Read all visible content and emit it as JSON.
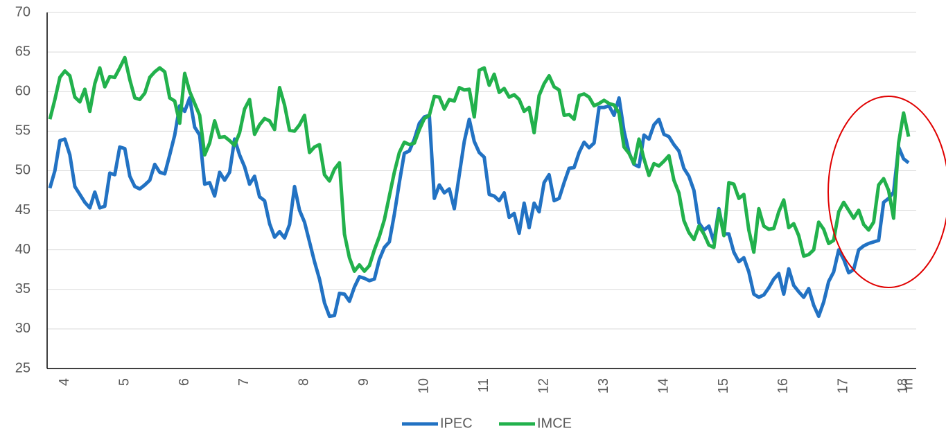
{
  "chart_data": {
    "type": "line",
    "categories": [
      null,
      null,
      null,
      "4",
      null,
      null,
      null,
      null,
      null,
      null,
      null,
      null,
      null,
      null,
      null,
      "5",
      null,
      null,
      null,
      null,
      null,
      null,
      null,
      null,
      null,
      null,
      null,
      "6",
      null,
      null,
      null,
      null,
      null,
      null,
      null,
      null,
      null,
      null,
      null,
      "7",
      null,
      null,
      null,
      null,
      null,
      null,
      null,
      null,
      null,
      null,
      null,
      "8",
      null,
      null,
      null,
      null,
      null,
      null,
      null,
      null,
      null,
      null,
      null,
      "9",
      null,
      null,
      null,
      null,
      null,
      null,
      null,
      null,
      null,
      null,
      null,
      "10",
      null,
      null,
      null,
      null,
      null,
      null,
      null,
      null,
      null,
      null,
      null,
      "11",
      null,
      null,
      null,
      null,
      null,
      null,
      null,
      null,
      null,
      null,
      null,
      "12",
      null,
      null,
      null,
      null,
      null,
      null,
      null,
      null,
      null,
      null,
      null,
      "13",
      null,
      null,
      null,
      null,
      null,
      null,
      null,
      null,
      null,
      null,
      null,
      "14",
      null,
      null,
      null,
      null,
      null,
      null,
      null,
      null,
      null,
      null,
      null,
      "15",
      null,
      null,
      null,
      null,
      null,
      null,
      null,
      null,
      null,
      null,
      null,
      "16",
      null,
      null,
      null,
      null,
      null,
      null,
      null,
      null,
      null,
      null,
      null,
      "17",
      null,
      null,
      null,
      null,
      null,
      null,
      null,
      null,
      null,
      null,
      null,
      "18",
      "m"
    ],
    "series": [
      {
        "name": "IPEC",
        "color": "#2272c3",
        "values": [
          47.8,
          50,
          53.8,
          54,
          52,
          48,
          47,
          46,
          45.3,
          47.3,
          45.3,
          45.5,
          49.7,
          49.5,
          53,
          52.8,
          49.3,
          48,
          47.7,
          48.2,
          48.8,
          50.8,
          49.8,
          49.6,
          52,
          54.5,
          58.2,
          57.5,
          59.2,
          55.5,
          54.5,
          48.3,
          48.5,
          46.8,
          49.8,
          48.8,
          49.8,
          54,
          52,
          50.5,
          48.3,
          49.3,
          46.7,
          46.2,
          43.3,
          41.6,
          42.3,
          41.5,
          43.2,
          48,
          45,
          43.5,
          41,
          38.5,
          36.3,
          33.3,
          31.6,
          31.7,
          34.5,
          34.4,
          33.5,
          35.3,
          36.6,
          36.4,
          36.1,
          36.3,
          38.8,
          40.3,
          41,
          44.5,
          48.5,
          52.2,
          52.5,
          54,
          56,
          56.8,
          57,
          46.5,
          48.2,
          47.2,
          47.7,
          45.2,
          49.5,
          53.7,
          56.5,
          53.7,
          52.3,
          51.7,
          47,
          46.8,
          46.2,
          47.2,
          44.1,
          44.6,
          42.1,
          45.9,
          42.8,
          45.9,
          44.8,
          48.5,
          49.5,
          46.2,
          46.5,
          48.5,
          50.3,
          50.4,
          52.3,
          53.6,
          52.9,
          53.5,
          58,
          58,
          58.2,
          57,
          59.2,
          55,
          52.3,
          50.8,
          50.5,
          54.5,
          54,
          55.8,
          56.5,
          54.6,
          54.3,
          53.3,
          52.5,
          50.3,
          49.3,
          47.5,
          43.4,
          42.5,
          43,
          41,
          45.2,
          42,
          42,
          39.7,
          38.5,
          39,
          37.2,
          34.4,
          34,
          34.3,
          35.2,
          36.3,
          37,
          34.4,
          37.6,
          35.5,
          34.7,
          34,
          35.1,
          33,
          31.6,
          33.4,
          36,
          37.2,
          40,
          38.8,
          37.1,
          37.5,
          40,
          40.5,
          40.8,
          41,
          41.2,
          46,
          46.5,
          47.3,
          53,
          51.5,
          51
        ]
      },
      {
        "name": "IMCE",
        "color": "#22b14c",
        "values": [
          56.5,
          59,
          61.8,
          62.6,
          62,
          59.3,
          58.7,
          60.3,
          57.5,
          61,
          63,
          60.6,
          61.9,
          61.8,
          63,
          64.3,
          61.5,
          59.2,
          59,
          59.8,
          61.8,
          62.5,
          63,
          62.5,
          59.2,
          58.8,
          56,
          62.3,
          60,
          58.5,
          57,
          52,
          53.5,
          56.3,
          54.2,
          54.3,
          53.8,
          53.2,
          54.8,
          57.8,
          59,
          54.6,
          55.8,
          56.6,
          56.3,
          55.2,
          60.5,
          58.3,
          55.1,
          55,
          55.8,
          57,
          52.3,
          53,
          53.3,
          49.5,
          48.7,
          50.2,
          51,
          42,
          39,
          37.3,
          38.1,
          37.3,
          38,
          40,
          41.7,
          43.8,
          46.8,
          49.8,
          52.3,
          53.6,
          53.3,
          53.5,
          55.2,
          56.6,
          57,
          59.4,
          59.3,
          57.8,
          59,
          58.8,
          60.5,
          60.2,
          60.3,
          56.8,
          62.7,
          63,
          60.8,
          62.2,
          59.9,
          60.4,
          59.3,
          59.6,
          59,
          57.5,
          58,
          54.8,
          59.5,
          61,
          62,
          60.6,
          60.2,
          57,
          57.1,
          56.5,
          59.5,
          59.7,
          59.3,
          58.2,
          58.5,
          58.9,
          58.5,
          58.3,
          57.3,
          53,
          52.2,
          50.9,
          54,
          51.5,
          49.4,
          50.9,
          50.6,
          51.2,
          51.9,
          48.8,
          47.2,
          43.7,
          42.2,
          41.3,
          43,
          42,
          40.6,
          40.3,
          45,
          41.8,
          48.5,
          48.3,
          46.5,
          47,
          42.5,
          39.7,
          45.2,
          43,
          42.6,
          42.7,
          44.8,
          46.3,
          42.8,
          43.3,
          41.8,
          39.2,
          39.4,
          40,
          43.5,
          42.6,
          40.8,
          41.2,
          44.8,
          46,
          45,
          44,
          45,
          43.2,
          42.5,
          43.5,
          48.2,
          49,
          47.5,
          44,
          53.5,
          57.3,
          54.3
        ]
      }
    ],
    "ylim": [
      25,
      70
    ],
    "yticks": [
      25,
      30,
      35,
      40,
      45,
      50,
      55,
      60,
      65,
      70
    ],
    "grid": true,
    "legend": "bottom"
  }
}
